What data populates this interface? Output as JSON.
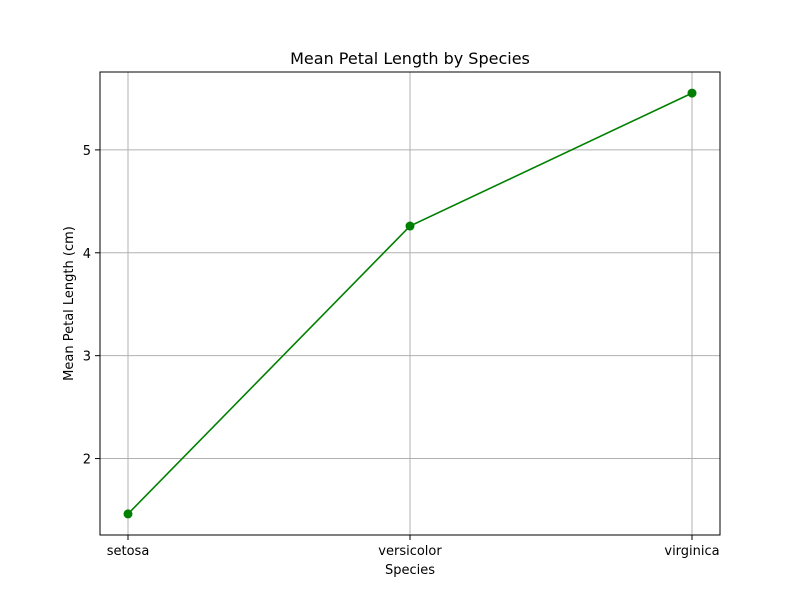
{
  "chart_data": {
    "type": "line",
    "title": "Mean Petal Length by Species",
    "xlabel": "Species",
    "ylabel": "Mean Petal Length (cm)",
    "categories": [
      "setosa",
      "versicolor",
      "virginica"
    ],
    "series": [
      {
        "values": [
          1.462,
          4.26,
          5.552
        ]
      }
    ],
    "ylim": [
      1.257,
      5.757
    ],
    "yticks": [
      2,
      3,
      4,
      5
    ],
    "grid": true,
    "colors": {
      "line": "#008000",
      "grid": "#b0b0b0",
      "axis": "#000000"
    }
  }
}
